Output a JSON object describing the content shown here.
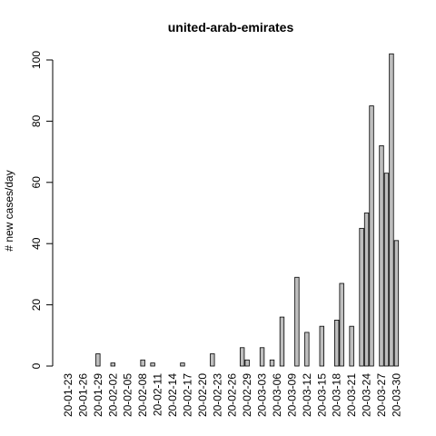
{
  "chart_data": {
    "type": "bar",
    "title": "united-arab-emirates",
    "y_label": "# new cases/day",
    "categories": [
      "20-01-23",
      null,
      null,
      "20-01-26",
      null,
      null,
      "20-01-29",
      null,
      null,
      "20-02-02",
      null,
      null,
      "20-02-05",
      null,
      null,
      "20-02-08",
      null,
      null,
      "20-02-11",
      null,
      null,
      "20-02-14",
      null,
      null,
      "20-02-17",
      null,
      null,
      "20-02-20",
      null,
      null,
      "20-02-23",
      null,
      null,
      "20-02-26",
      null,
      null,
      "20-02-29",
      null,
      null,
      "20-03-03",
      null,
      null,
      "20-03-06",
      null,
      null,
      "20-03-09",
      null,
      null,
      "20-03-12",
      null,
      null,
      "20-03-15",
      null,
      null,
      "20-03-18",
      null,
      null,
      "20-03-21",
      null,
      null,
      "20-03-24",
      null,
      null,
      "20-03-27",
      null,
      null,
      "20-03-30"
    ],
    "values": [
      0,
      0,
      0,
      0,
      0,
      0,
      4,
      0,
      0,
      1,
      0,
      0,
      0,
      0,
      0,
      2,
      0,
      1,
      0,
      0,
      0,
      0,
      0,
      1,
      0,
      0,
      0,
      0,
      0,
      4,
      0,
      0,
      0,
      0,
      0,
      6,
      2,
      0,
      0,
      6,
      0,
      2,
      0,
      16,
      0,
      0,
      29,
      0,
      11,
      0,
      0,
      13,
      0,
      0,
      15,
      27,
      0,
      13,
      0,
      45,
      50,
      85,
      0,
      72,
      63,
      102,
      41
    ],
    "color": "#bebebe",
    "ylim": [
      0,
      104
    ],
    "yticks": [
      0,
      20,
      40,
      60,
      80,
      100
    ]
  }
}
